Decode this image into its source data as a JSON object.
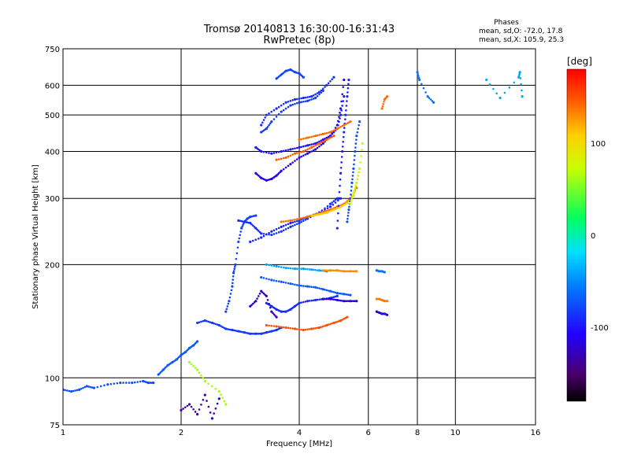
{
  "chart_data": {
    "type": "scatter",
    "title": "Tromsø 20140813 16:30:00-16:31:43",
    "subtitle": "RwPretec (8p)",
    "xlabel": "Frequency [MHz]",
    "ylabel": "Stationary phase Virtual Height [km]",
    "xscale": "log",
    "yscale": "log",
    "xlim": [
      1,
      16
    ],
    "ylim": [
      75,
      750
    ],
    "xticks": [
      1,
      2,
      4,
      6,
      8,
      10,
      16
    ],
    "yticks": [
      75,
      100,
      200,
      300,
      400,
      500,
      600,
      750
    ],
    "grid": true,
    "stats": {
      "title": "Phases",
      "line1": "mean, sd,O: -72.0, 17.8",
      "line2": "mean, sd,X: 105.9, 25.3"
    },
    "colorbar": {
      "label": "[deg]",
      "range": [
        -180,
        180
      ],
      "ticks": [
        100,
        0,
        -100
      ],
      "colormap": "rainbow"
    },
    "traces": [
      {
        "x": [
          1.0,
          1.05,
          1.1,
          1.15,
          1.2,
          1.3,
          1.4,
          1.5,
          1.6,
          1.65,
          1.7
        ],
        "y": [
          93,
          92,
          93,
          95,
          94,
          96,
          97,
          97,
          98,
          97,
          97
        ],
        "phase": -75
      },
      {
        "x": [
          1.75,
          1.8,
          1.85,
          1.9,
          1.95,
          2.0,
          2.05,
          2.1,
          2.15,
          2.2
        ],
        "y": [
          102,
          105,
          108,
          110,
          112,
          115,
          117,
          120,
          122,
          125
        ],
        "phase": -70
      },
      {
        "x": [
          2.2,
          2.3,
          2.4,
          2.5,
          2.6,
          2.7,
          2.8,
          2.9,
          3.0,
          3.1,
          3.2,
          3.3,
          3.4,
          3.5,
          3.6
        ],
        "y": [
          140,
          142,
          140,
          138,
          135,
          134,
          133,
          132,
          131,
          131,
          131,
          132,
          133,
          134,
          136
        ],
        "phase": -85
      },
      {
        "x": [
          2.6,
          2.65,
          2.7,
          2.72,
          2.75,
          2.8,
          2.85,
          2.9,
          2.95,
          3.0,
          3.1
        ],
        "y": [
          150,
          160,
          175,
          190,
          200,
          230,
          250,
          260,
          265,
          268,
          270
        ],
        "phase": -80
      },
      {
        "x": [
          2.8,
          2.9,
          3.0,
          3.1,
          3.2,
          3.4,
          3.6,
          3.8,
          4.0,
          4.2,
          4.5,
          4.8,
          5.0
        ],
        "y": [
          262,
          260,
          258,
          250,
          242,
          240,
          245,
          252,
          258,
          265,
          275,
          290,
          300
        ],
        "phase": -88
      },
      {
        "x": [
          3.0,
          3.2,
          3.4,
          3.6,
          3.8,
          4.0,
          4.2,
          4.5,
          4.8,
          5.1
        ],
        "y": [
          230,
          236,
          245,
          252,
          258,
          262,
          268,
          275,
          285,
          300
        ],
        "phase": -95
      },
      {
        "x": [
          3.6,
          3.8,
          4.0,
          4.2,
          4.4,
          4.6,
          4.8,
          5.0,
          5.2,
          5.4,
          5.6
        ],
        "y": [
          260,
          262,
          265,
          268,
          272,
          276,
          280,
          285,
          290,
          300,
          320
        ],
        "phase": 140
      },
      {
        "x": [
          4.3,
          4.5,
          4.7,
          4.9,
          5.1,
          5.3,
          5.5,
          5.6,
          5.7
        ],
        "y": [
          270,
          272,
          275,
          280,
          285,
          292,
          305,
          330,
          360
        ],
        "phase": 110
      },
      {
        "x": [
          3.1,
          3.2,
          3.3,
          3.4,
          3.5,
          3.6,
          3.8,
          4.0,
          4.2,
          4.4,
          4.6,
          4.8,
          5.0,
          5.1,
          5.2
        ],
        "y": [
          350,
          340,
          335,
          338,
          345,
          355,
          370,
          385,
          395,
          405,
          420,
          440,
          470,
          520,
          620
        ],
        "phase": -110
      },
      {
        "x": [
          3.1,
          3.2,
          3.4,
          3.6,
          3.8,
          4.0,
          4.2,
          4.4,
          4.6,
          4.8,
          5.0,
          5.1,
          5.2
        ],
        "y": [
          410,
          400,
          395,
          400,
          405,
          410,
          415,
          420,
          430,
          440,
          460,
          500,
          560
        ],
        "phase": -100
      },
      {
        "x": [
          3.2,
          3.3,
          3.4,
          3.6,
          3.8,
          4.0,
          4.2,
          4.4,
          4.6
        ],
        "y": [
          450,
          460,
          480,
          510,
          530,
          540,
          545,
          555,
          580
        ],
        "phase": -85
      },
      {
        "x": [
          3.2,
          3.3,
          3.5,
          3.7,
          3.9,
          4.1,
          4.3,
          4.5,
          4.7,
          4.9
        ],
        "y": [
          470,
          500,
          520,
          540,
          550,
          555,
          560,
          575,
          600,
          630
        ],
        "phase": -90
      },
      {
        "x": [
          3.5,
          3.6,
          3.7,
          3.8,
          3.9,
          4.0,
          4.1
        ],
        "y": [
          625,
          640,
          655,
          660,
          650,
          645,
          630
        ],
        "phase": -80
      },
      {
        "x": [
          5.0,
          5.05,
          5.1,
          5.15,
          5.2,
          5.25,
          5.3,
          5.35
        ],
        "y": [
          250,
          300,
          350,
          400,
          450,
          500,
          560,
          620
        ],
        "phase": -95
      },
      {
        "x": [
          5.3,
          5.35,
          5.4,
          5.45,
          5.5,
          5.55,
          5.6,
          5.7
        ],
        "y": [
          260,
          280,
          300,
          330,
          360,
          400,
          440,
          480
        ],
        "phase": -75
      },
      {
        "x": [
          5.4,
          5.5,
          5.6,
          5.7,
          5.8
        ],
        "y": [
          290,
          310,
          330,
          360,
          420
        ],
        "phase": 70
      },
      {
        "x": [
          4.0,
          4.2,
          4.4,
          4.6,
          4.8,
          5.0,
          5.2,
          5.4
        ],
        "y": [
          430,
          435,
          440,
          445,
          450,
          460,
          470,
          480
        ],
        "phase": 140
      },
      {
        "x": [
          3.5,
          3.7,
          3.9,
          4.1,
          4.3,
          4.5,
          4.7,
          4.9
        ],
        "y": [
          380,
          385,
          395,
          400,
          410,
          420,
          430,
          440
        ],
        "phase": 145
      },
      {
        "x": [
          3.3,
          3.5,
          3.7,
          3.9,
          4.1,
          4.3,
          4.5,
          4.7,
          4.9,
          5.1,
          5.3
        ],
        "y": [
          138,
          137,
          136,
          135,
          134,
          135,
          136,
          138,
          140,
          142,
          145
        ],
        "phase": 150
      },
      {
        "x": [
          3.3,
          3.4,
          3.5,
          3.6,
          3.7,
          3.8,
          3.9,
          4.0,
          4.2,
          4.4,
          4.6,
          4.8,
          5.0
        ],
        "y": [
          158,
          155,
          152,
          150,
          150,
          152,
          155,
          158,
          160,
          161,
          162,
          163,
          165
        ],
        "phase": -90
      },
      {
        "x": [
          3.2,
          3.4,
          3.6,
          3.8,
          4.0,
          4.2,
          4.4,
          4.6,
          4.8,
          5.0,
          5.2,
          5.4
        ],
        "y": [
          185,
          182,
          180,
          178,
          176,
          175,
          174,
          172,
          170,
          168,
          167,
          166
        ],
        "phase": -70
      },
      {
        "x": [
          3.3,
          3.5,
          3.7,
          3.9,
          4.1,
          4.3,
          4.5,
          4.7
        ],
        "y": [
          200,
          198,
          196,
          195,
          195,
          194,
          193,
          192
        ],
        "phase": -40
      },
      {
        "x": [
          4.6,
          4.8,
          5.0,
          5.2,
          5.4,
          5.6
        ],
        "y": [
          193,
          193,
          193,
          192,
          192,
          192
        ],
        "phase": 130
      },
      {
        "x": [
          4.6,
          4.8,
          5.0,
          5.2,
          5.4,
          5.6
        ],
        "y": [
          162,
          162,
          161,
          160,
          160,
          160
        ],
        "phase": -120
      },
      {
        "x": [
          3.0,
          3.1,
          3.2,
          3.3,
          3.4,
          3.5
        ],
        "y": [
          155,
          160,
          170,
          165,
          150,
          145
        ],
        "phase": -125
      },
      {
        "x": [
          6.3,
          6.4,
          6.5,
          6.6,
          6.7
        ],
        "y": [
          162,
          162,
          161,
          160,
          160
        ],
        "phase": 135
      },
      {
        "x": [
          6.3,
          6.4,
          6.5,
          6.6,
          6.7
        ],
        "y": [
          150,
          149,
          148,
          148,
          147
        ],
        "phase": -115
      },
      {
        "x": [
          6.3,
          6.4,
          6.5,
          6.6
        ],
        "y": [
          193,
          192,
          192,
          191
        ],
        "phase": -60
      },
      {
        "x": [
          2.0,
          2.1,
          2.2,
          2.3,
          2.4,
          2.5
        ],
        "y": [
          82,
          85,
          80,
          90,
          78,
          88
        ],
        "phase": -130
      },
      {
        "x": [
          2.1,
          2.2,
          2.3,
          2.5,
          2.6
        ],
        "y": [
          110,
          105,
          98,
          92,
          85
        ],
        "phase": 60
      },
      {
        "x": [
          6.5,
          6.6,
          6.7
        ],
        "y": [
          520,
          550,
          560
        ],
        "phase": 140
      },
      {
        "x": [
          8.0,
          8.1,
          8.5,
          8.8
        ],
        "y": [
          650,
          620,
          560,
          540
        ],
        "phase": -60
      },
      {
        "x": [
          12.0,
          13.0,
          14.5,
          14.6,
          14.8
        ],
        "y": [
          620,
          555,
          630,
          650,
          560
        ],
        "phase": -40
      }
    ]
  }
}
